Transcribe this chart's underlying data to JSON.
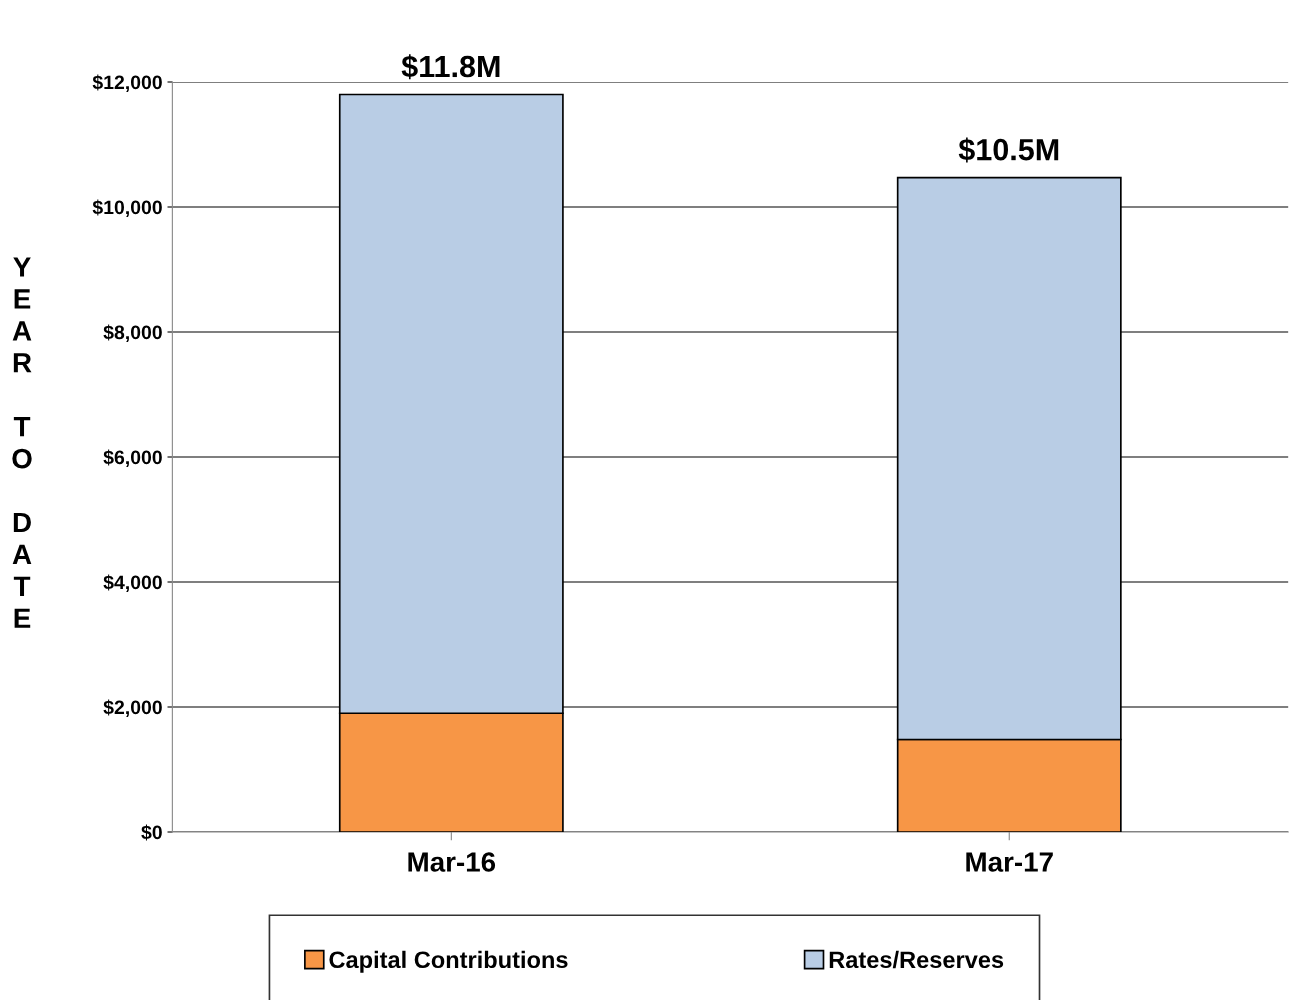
{
  "chart_data": {
    "type": "bar",
    "stacked": true,
    "ylabel": "YEAR TO DATE",
    "categories": [
      "Mar-16",
      "Mar-17"
    ],
    "series": [
      {
        "name": "Capital Contributions",
        "color": "#f79646",
        "values": [
          1900,
          1480
        ]
      },
      {
        "name": "Rates/Reserves",
        "color": "#b9cde5",
        "values": [
          9900,
          8990
        ]
      }
    ],
    "totals": [
      "$11.8M",
      "$10.5M"
    ],
    "ylim": [
      0,
      12000
    ],
    "yticks": [
      {
        "value": 0,
        "label": "$0"
      },
      {
        "value": 2000,
        "label": "$2,000"
      },
      {
        "value": 4000,
        "label": "$4,000"
      },
      {
        "value": 6000,
        "label": "$6,000"
      },
      {
        "value": 8000,
        "label": "$8,000"
      },
      {
        "value": 10000,
        "label": "$10,000"
      },
      {
        "value": 12000,
        "label": "$12,000"
      }
    ],
    "grid": "y",
    "legend": "bottom"
  }
}
